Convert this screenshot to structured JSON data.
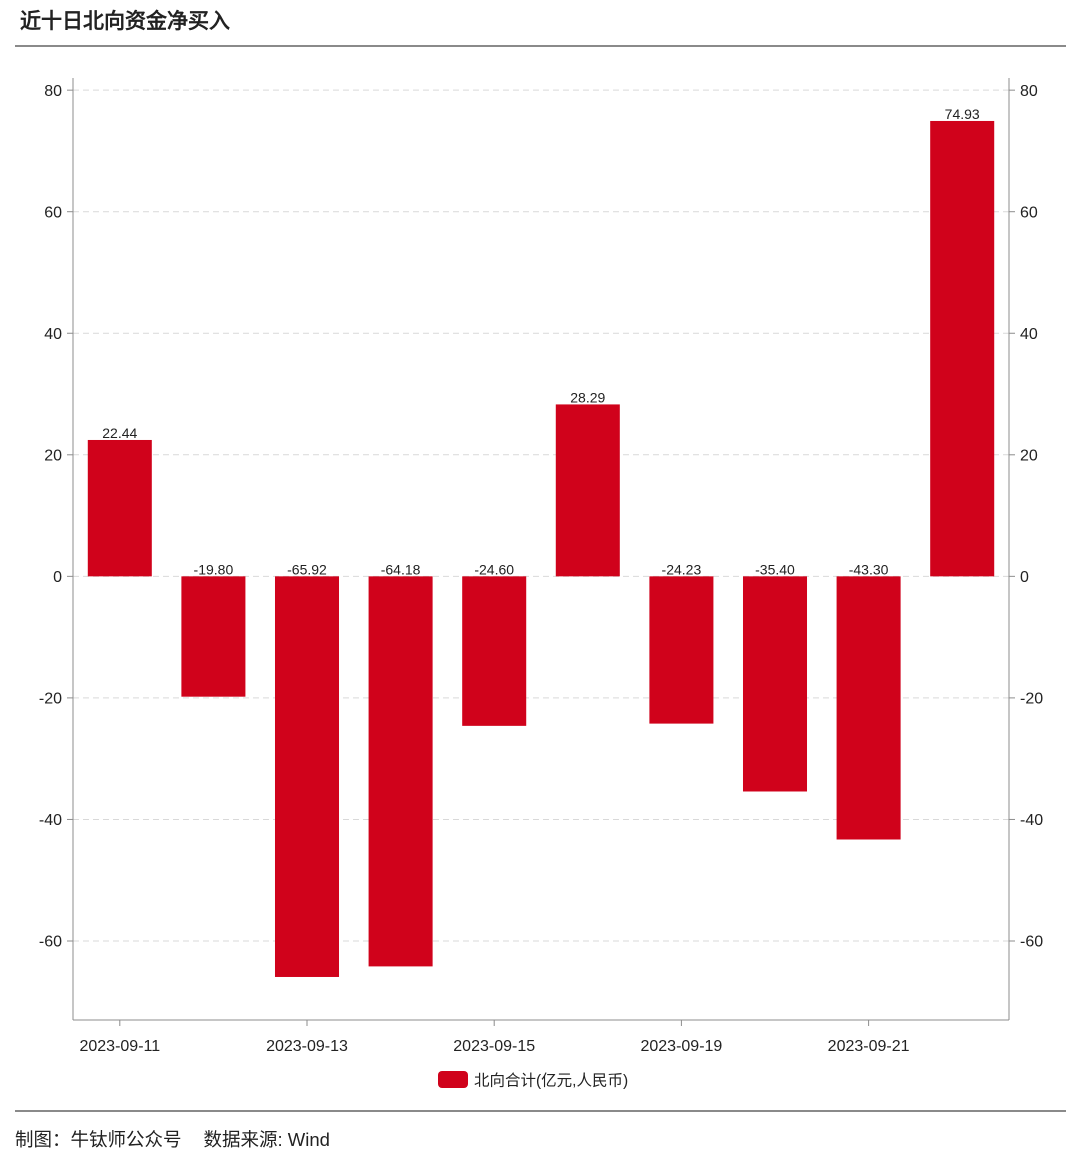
{
  "chart_data": {
    "type": "bar",
    "title": "近十日北向资金净买入",
    "categories": [
      "2023-09-11",
      "",
      "2023-09-13",
      "",
      "2023-09-15",
      "",
      "2023-09-19",
      "",
      "2023-09-21",
      ""
    ],
    "series": [
      {
        "name": "北向合计(亿元,人民币)",
        "values": [
          22.44,
          -19.8,
          -65.92,
          -64.18,
          -24.6,
          28.29,
          -24.23,
          -35.4,
          -43.3,
          74.93
        ],
        "data_labels": [
          "22.44",
          "-19.80",
          "-65.92",
          "-64.18",
          "-24.60",
          "28.29",
          "-24.23",
          "-35.40",
          "-43.30",
          "74.93"
        ],
        "color": "#d0021b"
      }
    ],
    "ylim": [
      -73,
      82
    ],
    "yticks": [
      80,
      60,
      40,
      20,
      0,
      -20,
      -40,
      -60
    ],
    "right_axis_mirror": true,
    "grid": true,
    "grid_dashed": true,
    "legend": "bottom-center"
  },
  "footer": {
    "credit": "制图：牛钛师公众号",
    "source": "数据来源: Wind"
  }
}
